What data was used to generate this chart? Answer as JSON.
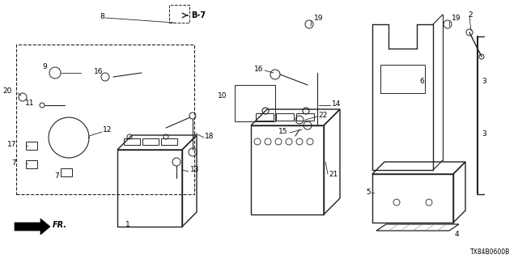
{
  "title": "",
  "background_color": "#ffffff",
  "diagram_code": "TX84B0600B",
  "b7_label": "B-7",
  "fr_label": "FR.",
  "figsize": [
    6.4,
    3.2
  ],
  "dpi": 100
}
